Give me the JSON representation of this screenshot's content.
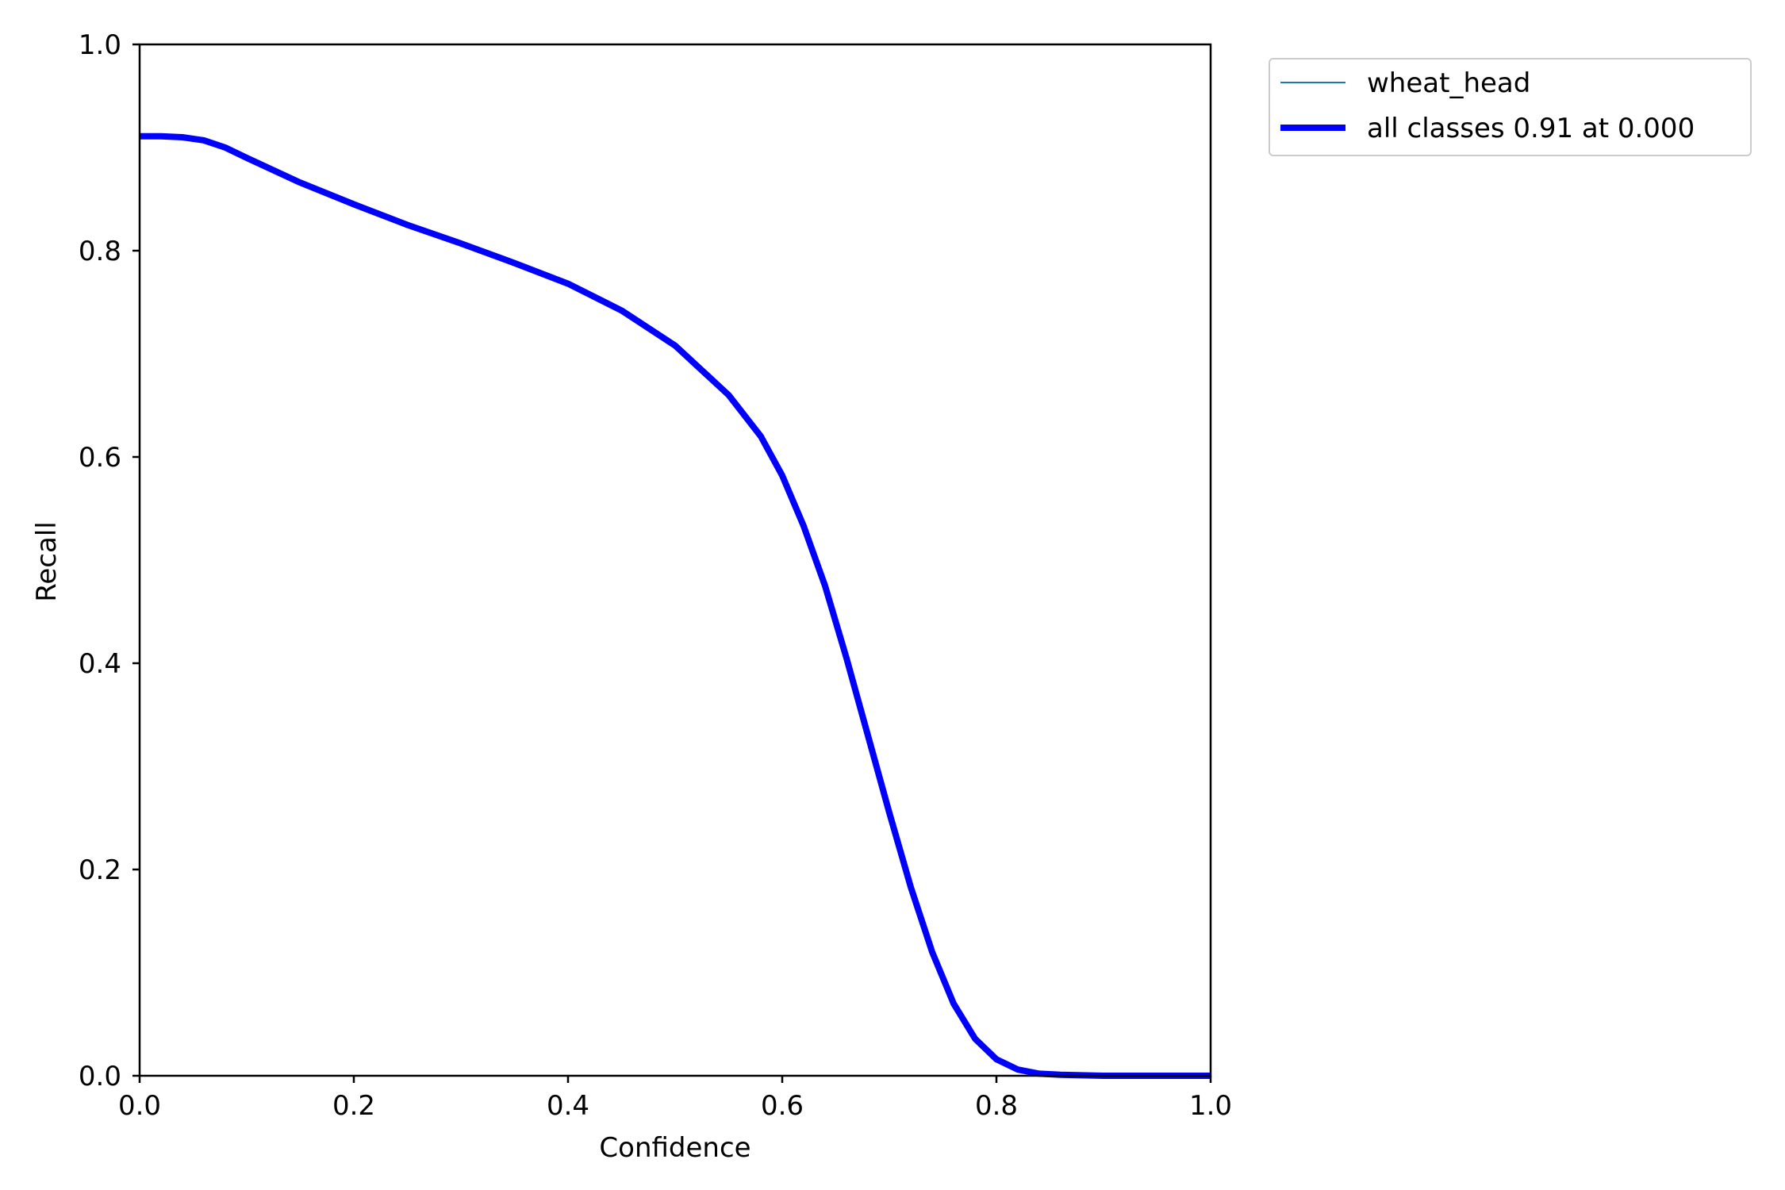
{
  "chart_data": {
    "type": "line",
    "title": "",
    "xlabel": "Confidence",
    "ylabel": "Recall",
    "xlim": [
      0,
      1
    ],
    "ylim": [
      0,
      1
    ],
    "xticks": [
      "0.0",
      "0.2",
      "0.4",
      "0.6",
      "0.8",
      "1.0"
    ],
    "yticks": [
      "0.0",
      "0.2",
      "0.4",
      "0.6",
      "0.8",
      "1.0"
    ],
    "grid": false,
    "legend_position": "outside-top-right",
    "series": [
      {
        "name": "wheat_head",
        "color": "#1f77b4",
        "x": [
          0.0,
          0.02,
          0.04,
          0.06,
          0.08,
          0.1,
          0.15,
          0.2,
          0.25,
          0.3,
          0.35,
          0.4,
          0.45,
          0.5,
          0.55,
          0.58,
          0.6,
          0.62,
          0.64,
          0.66,
          0.68,
          0.7,
          0.72,
          0.74,
          0.76,
          0.78,
          0.8,
          0.82,
          0.84,
          0.86,
          0.9,
          1.0
        ],
        "y": [
          0.911,
          0.911,
          0.91,
          0.907,
          0.9,
          0.89,
          0.866,
          0.845,
          0.825,
          0.807,
          0.788,
          0.768,
          0.742,
          0.708,
          0.66,
          0.62,
          0.582,
          0.533,
          0.475,
          0.405,
          0.33,
          0.255,
          0.183,
          0.12,
          0.07,
          0.036,
          0.016,
          0.006,
          0.002,
          0.001,
          0.0,
          0.0
        ]
      },
      {
        "name": "all classes 0.91 at 0.000",
        "color": "#0000ff",
        "x": [
          0.0,
          0.02,
          0.04,
          0.06,
          0.08,
          0.1,
          0.15,
          0.2,
          0.25,
          0.3,
          0.35,
          0.4,
          0.45,
          0.5,
          0.55,
          0.58,
          0.6,
          0.62,
          0.64,
          0.66,
          0.68,
          0.7,
          0.72,
          0.74,
          0.76,
          0.78,
          0.8,
          0.82,
          0.84,
          0.86,
          0.9,
          1.0
        ],
        "y": [
          0.911,
          0.911,
          0.91,
          0.907,
          0.9,
          0.89,
          0.866,
          0.845,
          0.825,
          0.807,
          0.788,
          0.768,
          0.742,
          0.708,
          0.66,
          0.62,
          0.582,
          0.533,
          0.475,
          0.405,
          0.33,
          0.255,
          0.183,
          0.12,
          0.07,
          0.036,
          0.016,
          0.006,
          0.002,
          0.001,
          0.0,
          0.0
        ]
      }
    ]
  }
}
